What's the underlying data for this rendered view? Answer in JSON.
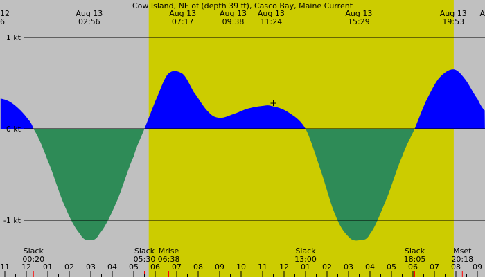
{
  "chart_data": {
    "type": "area",
    "title": "Cow Island, NE of (depth 39 ft), Casco Bay, Maine Current",
    "xlabel": "",
    "ylabel": "",
    "x_unit": "hours",
    "xlim": [
      -1.2,
      21.35
    ],
    "ylim": [
      -1.3,
      1.02
    ],
    "y_ticks": [
      {
        "value": 1,
        "label": "1 kt"
      },
      {
        "value": 0,
        "label": "0 kt"
      },
      {
        "value": -1,
        "label": "-1 kt"
      }
    ],
    "hour_ticks": [
      {
        "h": -1,
        "label": "11"
      },
      {
        "h": 0,
        "label": "12"
      },
      {
        "h": 1,
        "label": "01"
      },
      {
        "h": 2,
        "label": "02"
      },
      {
        "h": 3,
        "label": "03"
      },
      {
        "h": 4,
        "label": "04"
      },
      {
        "h": 5,
        "label": "05"
      },
      {
        "h": 6,
        "label": "06"
      },
      {
        "h": 7,
        "label": "07"
      },
      {
        "h": 8,
        "label": "08"
      },
      {
        "h": 9,
        "label": "09"
      },
      {
        "h": 10,
        "label": "10"
      },
      {
        "h": 11,
        "label": "11"
      },
      {
        "h": 12,
        "label": "12"
      },
      {
        "h": 13,
        "label": "01"
      },
      {
        "h": 14,
        "label": "02"
      },
      {
        "h": 15,
        "label": "03"
      },
      {
        "h": 16,
        "label": "04"
      },
      {
        "h": 17,
        "label": "05"
      },
      {
        "h": 18,
        "label": "06"
      },
      {
        "h": 19,
        "label": "07"
      },
      {
        "h": 20,
        "label": "08"
      },
      {
        "h": 21,
        "label": "09"
      }
    ],
    "daylight": {
      "start": 5.7,
      "end": 19.9
    },
    "top_labels": [
      {
        "t": -1.2,
        "date": "12",
        "time": "6",
        "anchor": "start"
      },
      {
        "t": 2.93,
        "date": "Aug 13",
        "time": "02:56",
        "anchor": "middle"
      },
      {
        "t": 7.28,
        "date": "Aug 13",
        "time": "07:17",
        "anchor": "middle"
      },
      {
        "t": 9.63,
        "date": "Aug 13",
        "time": "09:38",
        "anchor": "middle"
      },
      {
        "t": 11.4,
        "date": "Aug 13",
        "time": "11:24",
        "anchor": "middle"
      },
      {
        "t": 15.48,
        "date": "Aug 13",
        "time": "15:29",
        "anchor": "middle"
      },
      {
        "t": 19.88,
        "date": "Aug 13",
        "time": "19:53",
        "anchor": "middle"
      },
      {
        "t": 21.35,
        "date": "A",
        "time": "",
        "anchor": "end"
      }
    ],
    "events": [
      {
        "t": 0.33,
        "name": "Slack",
        "time": "00:20",
        "anchor": "middle"
      },
      {
        "t": 5.5,
        "name": "Slack",
        "time": "05:30",
        "anchor": "middle"
      },
      {
        "t": 6.63,
        "name": "Mrise",
        "time": "06:38",
        "anchor": "middle"
      },
      {
        "t": 13.0,
        "name": "Slack",
        "time": "13:00",
        "anchor": "middle"
      },
      {
        "t": 18.08,
        "name": "Slack",
        "time": "18:05",
        "anchor": "middle"
      },
      {
        "t": 20.3,
        "name": "Mset",
        "time": "20:18",
        "anchor": "middle"
      }
    ],
    "series": [
      {
        "x": [
          -1.2,
          -0.8,
          -0.4,
          0.0,
          0.33,
          1.0,
          1.8,
          2.5,
          2.93,
          3.4,
          4.2,
          5.0,
          5.5,
          6.0,
          6.6,
          7.28,
          7.8,
          8.5,
          9.0,
          9.63,
          10.3,
          11.0,
          11.4,
          12.2,
          13.0,
          13.7,
          14.4,
          15.0,
          15.48,
          16.0,
          16.8,
          17.5,
          18.08,
          18.6,
          19.2,
          19.88,
          20.4,
          21.0,
          21.35
        ],
        "values": [
          0.33,
          0.3,
          0.23,
          0.13,
          0.0,
          -0.35,
          -0.85,
          -1.15,
          -1.22,
          -1.15,
          -0.8,
          -0.3,
          0.0,
          0.3,
          0.6,
          0.6,
          0.4,
          0.18,
          0.12,
          0.16,
          0.22,
          0.25,
          0.25,
          0.18,
          0.0,
          -0.45,
          -0.95,
          -1.18,
          -1.22,
          -1.15,
          -0.75,
          -0.3,
          0.0,
          0.3,
          0.55,
          0.65,
          0.55,
          0.33,
          0.2
        ]
      }
    ],
    "flood_color": "#0000ff",
    "ebb_color": "#2e8b57",
    "daylight_color": "#cccc00",
    "night_color": "#c0c0c0",
    "marker": {
      "t": 11.5,
      "value": 0.28
    }
  }
}
